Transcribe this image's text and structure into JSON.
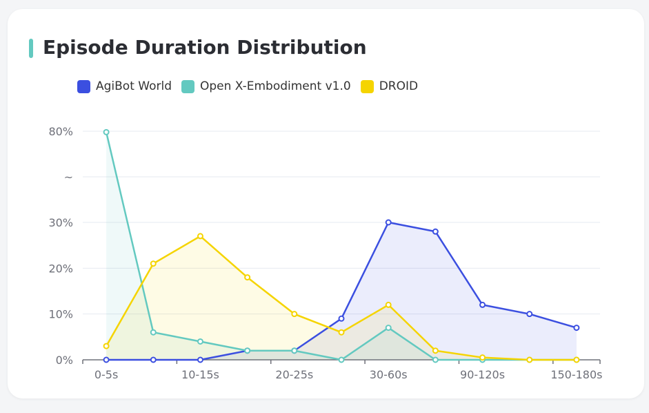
{
  "chart_data": {
    "type": "line",
    "title": "Episode Duration Distribution",
    "categories": [
      "0-5s",
      "",
      "10-15s",
      "",
      "20-25s",
      "",
      "30-60s",
      "",
      "90-120s",
      "",
      "150-180s"
    ],
    "y_tick_labels": [
      "0%",
      "10%",
      "20%",
      "30%",
      "~",
      "80%"
    ],
    "y_ticks": [
      0,
      10,
      20,
      30,
      55,
      80
    ],
    "ylim": [
      0,
      80
    ],
    "y_axis_break": "between 30% and 80%",
    "grid": true,
    "legend_position": "top",
    "area_fill": true,
    "series": [
      {
        "name": "AgiBot World",
        "color": "#3b4fe0",
        "values": [
          0,
          0,
          0,
          2,
          2,
          9,
          30,
          28,
          12,
          10,
          7
        ]
      },
      {
        "name": "Open X-Embodiment v1.0",
        "color": "#63c9c0",
        "values": [
          79.5,
          6,
          4,
          2,
          2,
          0,
          7,
          0,
          0,
          0,
          0
        ]
      },
      {
        "name": "DROID",
        "color": "#f5d400",
        "values": [
          3,
          21,
          27,
          18,
          10,
          6,
          12,
          2,
          0.5,
          0,
          0
        ]
      }
    ]
  },
  "accent_color": "#63c9c0"
}
